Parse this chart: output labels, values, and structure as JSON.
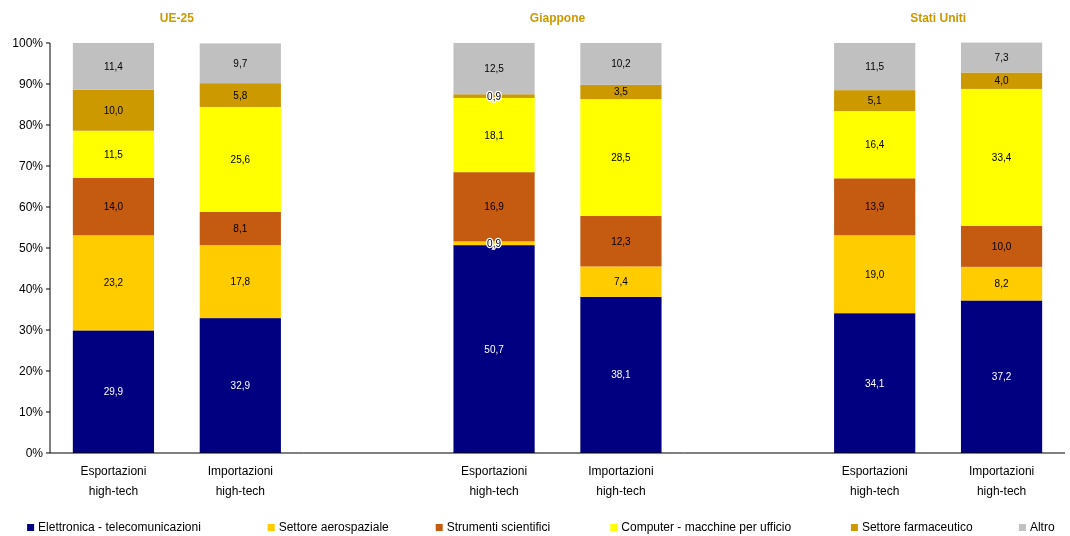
{
  "chart_data": [
    {
      "type": "bar",
      "title": "UE-25",
      "stacked": true,
      "legend": "bottom",
      "ylim": [
        0,
        100
      ],
      "yticks": [
        {
          "value": 0,
          "label": "0%"
        },
        {
          "value": 10,
          "label": "10%"
        },
        {
          "value": 20,
          "label": "20%"
        },
        {
          "value": 30,
          "label": "30%"
        },
        {
          "value": 40,
          "label": "40%"
        },
        {
          "value": 50,
          "label": "50%"
        },
        {
          "value": 60,
          "label": "60%"
        },
        {
          "value": 70,
          "label": "70%"
        },
        {
          "value": 80,
          "label": "80%"
        },
        {
          "value": 90,
          "label": "90%"
        },
        {
          "value": 100,
          "label": "100%"
        }
      ],
      "grid": false,
      "categories": [
        "Esportazioni high-tech",
        "Importazioni high-tech"
      ],
      "series": [
        {
          "name": "Elettronica - telecomunicazioni",
          "color": "#000080",
          "values": [
            29.9,
            32.9
          ],
          "value_labels": [
            "29,9",
            "32,9"
          ]
        },
        {
          "name": "Settore aerospaziale",
          "color": "#ffcc00",
          "values": [
            23.2,
            17.8
          ],
          "value_labels": [
            "23,2",
            "17,8"
          ]
        },
        {
          "name": "Strumenti scientifici",
          "color": "#c55a11",
          "values": [
            14.0,
            8.1
          ],
          "value_labels": [
            "14,0",
            "8,1"
          ]
        },
        {
          "name": "Computer - macchine per ufficio",
          "color": "#ffff00",
          "values": [
            11.5,
            25.6
          ],
          "value_labels": [
            "11,5",
            "25,6"
          ]
        },
        {
          "name": "Settore farmaceutico",
          "color": "#cc9900",
          "values": [
            10.0,
            5.8
          ],
          "value_labels": [
            "10,0",
            "5,8"
          ]
        },
        {
          "name": "Altro",
          "color": "#c0c0c0",
          "values": [
            11.4,
            9.7
          ],
          "value_labels": [
            "11,4",
            "9,7"
          ]
        }
      ]
    },
    {
      "type": "bar",
      "title": "Giappone",
      "stacked": true,
      "tick_labels": "x",
      "ylim": [
        0,
        100
      ],
      "grid": false,
      "categories": [
        "Esportazioni high-tech",
        "Importazioni high-tech"
      ],
      "series": [
        {
          "color": "#000080",
          "values": [
            50.7,
            38.1
          ],
          "value_labels": [
            "50,7",
            "38,1"
          ]
        },
        {
          "color": "#ffcc00",
          "values": [
            0.9,
            7.4
          ],
          "value_labels": [
            "0,9",
            "7,4"
          ]
        },
        {
          "color": "#c55a11",
          "values": [
            16.9,
            12.3
          ],
          "value_labels": [
            "16,9",
            "12,3"
          ]
        },
        {
          "color": "#ffff00",
          "values": [
            18.1,
            28.5
          ],
          "value_labels": [
            "18,1",
            "28,5"
          ]
        },
        {
          "color": "#cc9900",
          "values": [
            0.9,
            3.5
          ],
          "value_labels": [
            "0,9",
            "3,5"
          ]
        },
        {
          "color": "#c0c0c0",
          "values": [
            12.5,
            10.2
          ],
          "value_labels": [
            "12,5",
            "10,2"
          ]
        }
      ]
    },
    {
      "type": "bar",
      "title": "Stati Uniti",
      "stacked": true,
      "tick_labels": "x",
      "ylim": [
        0,
        100
      ],
      "grid": false,
      "categories": [
        "Esportazioni high-tech",
        "Importazioni high-tech"
      ],
      "series": [
        {
          "color": "#000080",
          "values": [
            34.1,
            37.2
          ],
          "value_labels": [
            "34,1",
            "37,2"
          ]
        },
        {
          "color": "#ffcc00",
          "values": [
            19.0,
            8.2
          ],
          "value_labels": [
            "19,0",
            "8,2"
          ]
        },
        {
          "color": "#c55a11",
          "values": [
            13.9,
            10.0
          ],
          "value_labels": [
            "13,9",
            "10,0"
          ]
        },
        {
          "color": "#ffff00",
          "values": [
            16.4,
            33.4
          ],
          "value_labels": [
            "16,4",
            "33,4"
          ]
        },
        {
          "color": "#cc9900",
          "values": [
            5.1,
            4.0
          ],
          "value_labels": [
            "5,1",
            "4,0"
          ]
        },
        {
          "color": "#c0c0c0",
          "values": [
            11.5,
            7.3
          ],
          "value_labels": [
            "11,5",
            "7,3"
          ]
        }
      ]
    }
  ]
}
